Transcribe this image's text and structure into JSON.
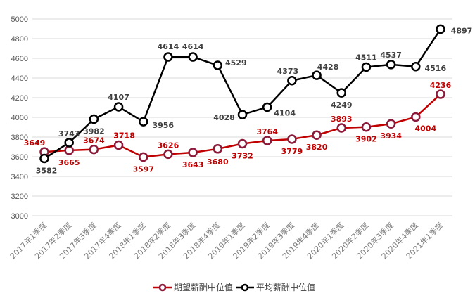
{
  "chart_data": {
    "type": "line",
    "title": "",
    "xlabel": "",
    "ylabel": "",
    "ylim": [
      3000,
      5000
    ],
    "ytick_step": 200,
    "grid": true,
    "legend_position": "bottom",
    "categories": [
      "2017年1季度",
      "2017年2季度",
      "2017年3季度",
      "2017年4季度",
      "2018年1季度",
      "2018年2季度",
      "2018年3季度",
      "2018年4季度",
      "2019年1季度",
      "2019年2季度",
      "2019年3季度",
      "2019年4季度",
      "2020年1季度",
      "2020年2季度",
      "2020年3季度",
      "2020年4季度",
      "2021年1季度"
    ],
    "series": [
      {
        "name": "期望薪酬中位值",
        "color": "#c00000",
        "marker_color": "#8b1a3a",
        "label_color": "#c00000",
        "values": [
          3649,
          3665,
          3674,
          3718,
          3597,
          3626,
          3643,
          3680,
          3732,
          3764,
          3779,
          3820,
          3893,
          3902,
          3934,
          4004,
          4236
        ]
      },
      {
        "name": "平均薪酬中位值",
        "color": "#000000",
        "marker_color": "#000000",
        "label_color": "#404040",
        "values": [
          3582,
          3743,
          3982,
          4107,
          3956,
          4614,
          4614,
          4529,
          4028,
          4104,
          4373,
          4428,
          4249,
          4511,
          4537,
          4516,
          4897
        ]
      }
    ]
  }
}
